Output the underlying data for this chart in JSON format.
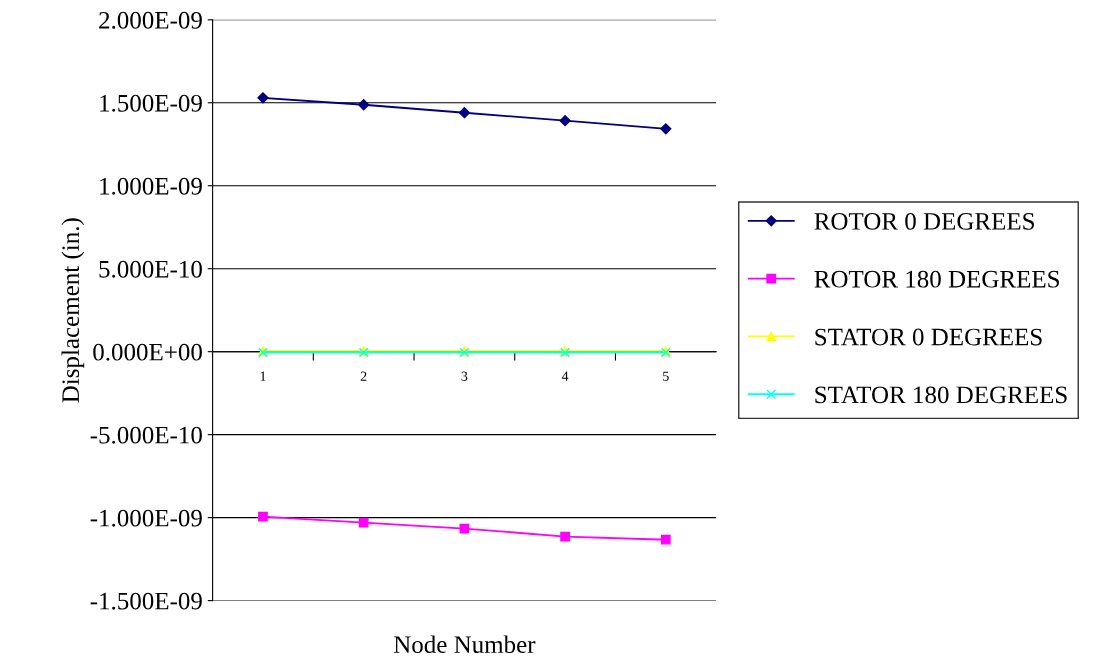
{
  "chart_data": {
    "type": "line",
    "xlabel": "Node Number",
    "ylabel": "Displacement (in.)",
    "categories": [
      "1",
      "2",
      "3",
      "4",
      "5"
    ],
    "series": [
      {
        "name": "ROTOR 0 DEGREES",
        "color": "#000080",
        "marker": "diamond",
        "values": [
          1.53e-09,
          1.488e-09,
          1.44e-09,
          1.392e-09,
          1.343e-09
        ]
      },
      {
        "name": "ROTOR 180 DEGREES",
        "color": "#ff00ff",
        "marker": "square",
        "values": [
          -9.94e-10,
          -1.03e-09,
          -1.066e-09,
          -1.114e-09,
          -1.133e-09
        ]
      },
      {
        "name": "STATOR 0 DEGREES",
        "color": "#ffff00",
        "marker": "triangle",
        "values": [
          5e-12,
          5e-12,
          5e-12,
          5e-12,
          5e-12
        ]
      },
      {
        "name": "STATOR 180 DEGREES",
        "color": "#00ffff",
        "marker": "cross",
        "values": [
          -5e-12,
          -5e-12,
          -5e-12,
          -5e-12,
          -5e-12
        ]
      }
    ],
    "ylim": [
      -1.5e-09,
      2e-09
    ],
    "yticks": [
      {
        "value": -1.5e-09,
        "label": "-1.500E-09"
      },
      {
        "value": -1e-09,
        "label": "-1.000E-09"
      },
      {
        "value": -5e-10,
        "label": "-5.000E-10"
      },
      {
        "value": 0,
        "label": "0.000E+00"
      },
      {
        "value": 5e-10,
        "label": "5.000E-10"
      },
      {
        "value": 1e-09,
        "label": "1.000E-09"
      },
      {
        "value": 1.5e-09,
        "label": "1.500E-09"
      },
      {
        "value": 2e-09,
        "label": "2.000E-09"
      }
    ],
    "grid": "y",
    "legend": "right"
  }
}
